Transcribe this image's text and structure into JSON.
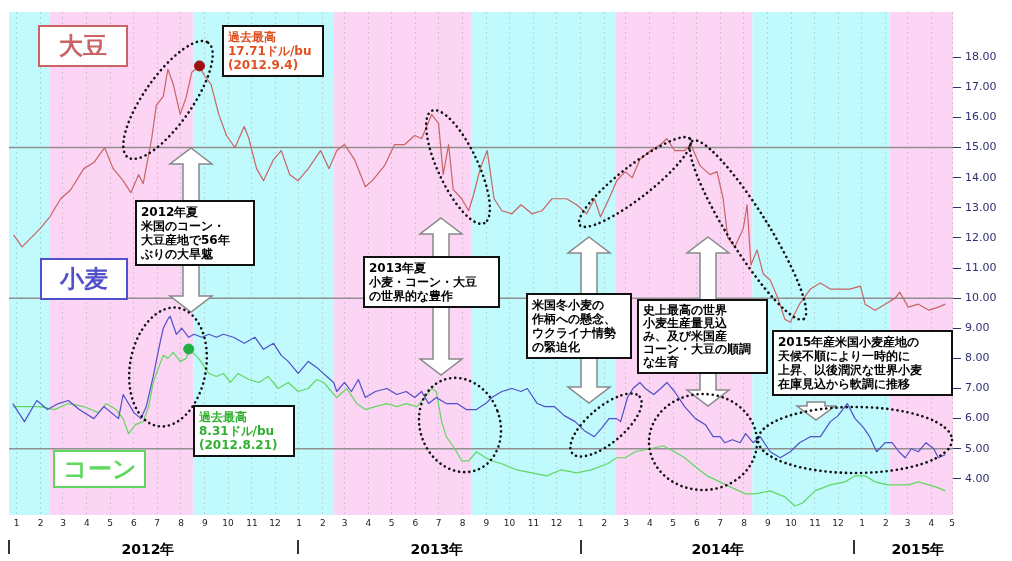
{
  "chart_data": {
    "type": "line",
    "grid": "x",
    "xlim": [
      "2012-01-01",
      "2015-05-09"
    ],
    "xticks": [
      {
        "value": "2012-01-11",
        "label": "1"
      },
      {
        "value": "2012-02-11",
        "label": "2"
      },
      {
        "value": "2012-03-11",
        "label": "3"
      },
      {
        "value": "2012-04-11",
        "label": "4"
      },
      {
        "value": "2012-05-11",
        "label": "5"
      },
      {
        "value": "2012-06-11",
        "label": "6"
      },
      {
        "value": "2012-07-11",
        "label": "7"
      },
      {
        "value": "2012-08-11",
        "label": "8"
      },
      {
        "value": "2012-09-11",
        "label": "9"
      },
      {
        "value": "2012-10-11",
        "label": "10"
      },
      {
        "value": "2012-11-11",
        "label": "11"
      },
      {
        "value": "2012-12-11",
        "label": "12"
      },
      {
        "value": "2013-01-11",
        "label": "1"
      },
      {
        "value": "2013-02-11",
        "label": "2"
      },
      {
        "value": "2013-03-11",
        "label": "3"
      },
      {
        "value": "2013-04-11",
        "label": "4"
      },
      {
        "value": "2013-05-11",
        "label": "5"
      },
      {
        "value": "2013-06-11",
        "label": "6"
      },
      {
        "value": "2013-07-11",
        "label": "7"
      },
      {
        "value": "2013-08-11",
        "label": "8"
      },
      {
        "value": "2013-09-11",
        "label": "9"
      },
      {
        "value": "2013-10-11",
        "label": "10"
      },
      {
        "value": "2013-11-11",
        "label": "11"
      },
      {
        "value": "2013-12-11",
        "label": "12"
      },
      {
        "value": "2014-01-11",
        "label": "1"
      },
      {
        "value": "2014-02-11",
        "label": "2"
      },
      {
        "value": "2014-03-11",
        "label": "3"
      },
      {
        "value": "2014-04-11",
        "label": "4"
      },
      {
        "value": "2014-05-11",
        "label": "5"
      },
      {
        "value": "2014-06-11",
        "label": "6"
      },
      {
        "value": "2014-07-11",
        "label": "7"
      },
      {
        "value": "2014-08-11",
        "label": "8"
      },
      {
        "value": "2014-09-11",
        "label": "9"
      },
      {
        "value": "2014-10-11",
        "label": "10"
      },
      {
        "value": "2014-11-11",
        "label": "11"
      },
      {
        "value": "2014-12-11",
        "label": "12"
      },
      {
        "value": "2015-01-11",
        "label": "1"
      },
      {
        "value": "2015-02-11",
        "label": "2"
      },
      {
        "value": "2015-03-11",
        "label": "3"
      },
      {
        "value": "2015-04-11",
        "label": "4"
      },
      {
        "value": "2015-05-08",
        "label": "5"
      }
    ],
    "ylim": [
      2.8,
      19.5
    ],
    "yticks": [
      {
        "value": 4,
        "label": "4.00"
      },
      {
        "value": 5,
        "label": "5.00"
      },
      {
        "value": 6,
        "label": "6.00"
      },
      {
        "value": 7,
        "label": "7.00"
      },
      {
        "value": 8,
        "label": "8.00"
      },
      {
        "value": 9,
        "label": "9.00"
      },
      {
        "value": 10,
        "label": "10.00"
      },
      {
        "value": 11,
        "label": "11.00"
      },
      {
        "value": 12,
        "label": "12.00"
      },
      {
        "value": 13,
        "label": "13.00"
      },
      {
        "value": 14,
        "label": "14.00"
      },
      {
        "value": 15,
        "label": "15.00"
      },
      {
        "value": 16,
        "label": "16.00"
      },
      {
        "value": 17,
        "label": "17.00"
      },
      {
        "value": 18,
        "label": "18.00"
      }
    ],
    "bands": [
      {
        "axis": "x",
        "from": "2012-01-01",
        "to": "2012-02-23",
        "color": "#c0fafc"
      },
      {
        "axis": "x",
        "from": "2012-02-23",
        "to": "2012-08-27",
        "color": "#fcd4f4"
      },
      {
        "axis": "x",
        "from": "2012-08-27",
        "to": "2013-02-25",
        "color": "#c0fafc"
      },
      {
        "axis": "x",
        "from": "2013-02-25",
        "to": "2013-08-23",
        "color": "#fcd4f4"
      },
      {
        "axis": "x",
        "from": "2013-08-23",
        "to": "2014-02-25",
        "color": "#c0fafc"
      },
      {
        "axis": "x",
        "from": "2014-02-25",
        "to": "2014-08-22",
        "color": "#fcd4f4"
      },
      {
        "axis": "x",
        "from": "2014-08-22",
        "to": "2015-02-16",
        "color": "#c0fafc"
      },
      {
        "axis": "x",
        "from": "2015-02-16",
        "to": "2015-05-09",
        "color": "#fcd4f4"
      }
    ],
    "ref_lines": [
      {
        "axis": "y",
        "value": 5,
        "color": "#909090"
      },
      {
        "axis": "y",
        "value": 10,
        "color": "#909090"
      },
      {
        "axis": "y",
        "value": 15,
        "color": "#909090"
      }
    ],
    "series": [
      {
        "name": "大豆",
        "color": "#c86464",
        "x": [
          "2012-01-07",
          "2012-01-18",
          "2012-02-10",
          "2012-02-23",
          "2012-03-08",
          "2012-03-21",
          "2012-04-07",
          "2012-04-20",
          "2012-05-04",
          "2012-05-15",
          "2012-05-28",
          "2012-06-07",
          "2012-06-17",
          "2012-06-23",
          "2012-07-04",
          "2012-07-10",
          "2012-07-19",
          "2012-07-25",
          "2012-08-01",
          "2012-08-10",
          "2012-08-18",
          "2012-08-25",
          "2012-09-04",
          "2012-09-10",
          "2012-09-19",
          "2012-09-29",
          "2012-10-09",
          "2012-10-20",
          "2012-11-01",
          "2012-11-07",
          "2012-11-17",
          "2012-11-26",
          "2012-12-09",
          "2012-12-19",
          "2012-12-30",
          "2013-01-10",
          "2013-01-23",
          "2013-02-08",
          "2013-02-19",
          "2013-03-01",
          "2013-03-11",
          "2013-03-24",
          "2013-04-07",
          "2013-04-16",
          "2013-05-02",
          "2013-05-15",
          "2013-05-28",
          "2013-06-10",
          "2013-06-19",
          "2013-07-02",
          "2013-07-11",
          "2013-07-17",
          "2013-07-24",
          "2013-07-30",
          "2013-08-10",
          "2013-08-19",
          "2013-08-25",
          "2013-09-03",
          "2013-09-12",
          "2013-09-16",
          "2013-09-21",
          "2013-10-01",
          "2013-10-14",
          "2013-10-26",
          "2013-11-09",
          "2013-11-22",
          "2013-12-05",
          "2013-12-24",
          "2014-01-06",
          "2014-01-19",
          "2014-01-29",
          "2014-02-06",
          "2014-02-17",
          "2014-02-27",
          "2014-03-10",
          "2014-03-19",
          "2014-03-29",
          "2014-04-12",
          "2014-04-25",
          "2014-05-03",
          "2014-05-13",
          "2014-05-26",
          "2014-06-03",
          "2014-06-15",
          "2014-06-28",
          "2014-07-07",
          "2014-07-15",
          "2014-07-21",
          "2014-07-30",
          "2014-08-10",
          "2014-08-15",
          "2014-08-20",
          "2014-08-28",
          "2014-09-05",
          "2014-09-14",
          "2014-09-24",
          "2014-10-03",
          "2014-10-10",
          "2014-10-22",
          "2014-11-05",
          "2014-11-18",
          "2014-12-01",
          "2014-12-13",
          "2014-12-26",
          "2015-01-09",
          "2015-01-15",
          "2015-01-28",
          "2015-02-10",
          "2015-02-23",
          "2015-03-01",
          "2015-03-12",
          "2015-03-25",
          "2015-04-08",
          "2015-04-20",
          "2015-04-29"
        ],
        "values": [
          12.1,
          11.7,
          12.3,
          12.7,
          13.3,
          13.6,
          14.3,
          14.5,
          15.0,
          14.3,
          13.9,
          13.5,
          14.1,
          13.8,
          15.3,
          16.4,
          16.7,
          17.6,
          17.1,
          16.1,
          16.7,
          17.5,
          17.71,
          17.4,
          17.1,
          16.1,
          15.4,
          15.0,
          15.7,
          15.3,
          14.3,
          13.9,
          14.6,
          14.9,
          14.1,
          13.9,
          14.3,
          14.9,
          14.3,
          14.9,
          15.1,
          14.6,
          13.7,
          13.9,
          14.4,
          15.1,
          15.1,
          15.4,
          15.3,
          16.1,
          15.8,
          14.1,
          15.1,
          13.6,
          13.3,
          12.9,
          13.4,
          14.3,
          14.9,
          14.2,
          13.3,
          12.9,
          12.8,
          13.1,
          12.8,
          12.9,
          13.3,
          13.3,
          13.1,
          12.8,
          13.3,
          12.7,
          13.3,
          13.9,
          14.2,
          14.0,
          14.6,
          14.9,
          15.1,
          15.3,
          14.9,
          14.9,
          15.1,
          14.4,
          14.1,
          14.2,
          13.3,
          12.0,
          11.7,
          12.3,
          13.1,
          11.1,
          11.6,
          10.8,
          10.6,
          10.0,
          9.3,
          9.2,
          9.8,
          10.3,
          10.5,
          10.3,
          10.3,
          10.3,
          10.4,
          9.8,
          9.6,
          9.8,
          10.0,
          10.2,
          9.7,
          9.8,
          9.6,
          9.7,
          9.8
        ]
      },
      {
        "name": "小麦",
        "color": "#5050c8",
        "x": [
          "2012-01-06",
          "2012-01-21",
          "2012-02-06",
          "2012-02-20",
          "2012-03-05",
          "2012-03-18",
          "2012-04-01",
          "2012-04-20",
          "2012-05-03",
          "2012-05-22",
          "2012-05-28",
          "2012-06-11",
          "2012-06-20",
          "2012-06-27",
          "2012-07-06",
          "2012-07-13",
          "2012-07-19",
          "2012-07-25",
          "2012-07-28",
          "2012-08-05",
          "2012-08-12",
          "2012-08-21",
          "2012-08-28",
          "2012-09-07",
          "2012-09-16",
          "2012-09-26",
          "2012-10-05",
          "2012-10-18",
          "2012-11-01",
          "2012-11-15",
          "2012-11-26",
          "2012-12-09",
          "2012-12-19",
          "2012-12-28",
          "2013-01-10",
          "2013-01-23",
          "2013-02-03",
          "2013-02-16",
          "2013-02-25",
          "2013-03-01",
          "2013-03-11",
          "2013-03-20",
          "2013-03-29",
          "2013-04-07",
          "2013-04-20",
          "2013-05-05",
          "2013-05-18",
          "2013-05-30",
          "2013-06-10",
          "2013-06-19",
          "2013-06-28",
          "2013-07-08",
          "2013-07-21",
          "2013-08-04",
          "2013-08-16",
          "2013-08-29",
          "2013-09-10",
          "2013-09-18",
          "2013-10-01",
          "2013-10-14",
          "2013-10-26",
          "2013-11-03",
          "2013-11-16",
          "2013-11-26",
          "2013-12-08",
          "2013-12-21",
          "2014-01-04",
          "2014-01-16",
          "2014-01-29",
          "2014-02-08",
          "2014-02-17",
          "2014-02-27",
          "2014-03-04",
          "2014-03-13",
          "2014-03-20",
          "2014-03-29",
          "2014-04-05",
          "2014-04-16",
          "2014-04-25",
          "2014-05-03",
          "2014-05-13",
          "2014-05-26",
          "2014-06-09",
          "2014-06-22",
          "2014-07-02",
          "2014-07-11",
          "2014-07-17",
          "2014-07-27",
          "2014-08-06",
          "2014-08-13",
          "2014-08-23",
          "2014-09-01",
          "2014-09-14",
          "2014-09-27",
          "2014-10-10",
          "2014-10-22",
          "2014-11-05",
          "2014-11-18",
          "2014-12-01",
          "2014-12-11",
          "2014-12-17",
          "2014-12-23",
          "2015-01-02",
          "2015-01-13",
          "2015-01-21",
          "2015-01-30",
          "2015-02-10",
          "2015-02-19",
          "2015-02-28",
          "2015-03-08",
          "2015-03-16",
          "2015-03-25",
          "2015-04-04",
          "2015-04-14",
          "2015-04-20",
          "2015-04-29"
        ],
        "values": [
          6.5,
          5.9,
          6.6,
          6.3,
          6.5,
          6.6,
          6.3,
          6.0,
          6.4,
          6.0,
          6.8,
          6.2,
          6.0,
          6.4,
          7.4,
          8.3,
          9.0,
          9.3,
          9.4,
          8.8,
          9.0,
          8.7,
          8.8,
          8.7,
          8.8,
          8.7,
          8.8,
          8.7,
          8.5,
          8.7,
          8.3,
          8.5,
          8.1,
          7.9,
          7.5,
          7.9,
          7.7,
          7.4,
          7.2,
          6.9,
          7.2,
          6.9,
          7.3,
          6.7,
          6.9,
          7.0,
          6.8,
          6.9,
          6.7,
          6.9,
          6.5,
          6.7,
          6.5,
          6.5,
          6.3,
          6.3,
          6.5,
          6.7,
          6.9,
          7.0,
          6.9,
          7.0,
          6.5,
          6.4,
          6.4,
          6.1,
          5.9,
          5.6,
          5.4,
          5.7,
          6.0,
          6.0,
          5.9,
          6.7,
          7.0,
          7.2,
          7.0,
          6.8,
          7.0,
          7.2,
          6.9,
          6.4,
          6.0,
          5.8,
          5.4,
          5.4,
          5.2,
          5.3,
          5.2,
          5.5,
          5.2,
          5.4,
          4.9,
          4.7,
          4.9,
          5.2,
          5.4,
          5.4,
          5.9,
          6.1,
          6.3,
          6.5,
          6.0,
          5.7,
          5.4,
          4.9,
          5.2,
          5.2,
          4.9,
          4.7,
          5.0,
          4.9,
          5.2,
          5.0,
          4.7,
          4.8
        ]
      },
      {
        "name": "コーン",
        "color": "#60d860",
        "x": [
          "2012-01-06",
          "2012-01-21",
          "2012-02-10",
          "2012-02-29",
          "2012-03-18",
          "2012-04-07",
          "2012-04-26",
          "2012-05-06",
          "2012-05-19",
          "2012-05-28",
          "2012-06-04",
          "2012-06-13",
          "2012-06-23",
          "2012-06-30",
          "2012-07-06",
          "2012-07-13",
          "2012-07-19",
          "2012-07-25",
          "2012-08-01",
          "2012-08-10",
          "2012-08-18",
          "2012-08-21",
          "2012-09-03",
          "2012-09-16",
          "2012-09-26",
          "2012-10-05",
          "2012-10-14",
          "2012-10-24",
          "2012-11-07",
          "2012-11-20",
          "2012-12-02",
          "2012-12-15",
          "2012-12-28",
          "2013-01-10",
          "2013-01-23",
          "2013-02-03",
          "2013-02-12",
          "2013-02-22",
          "2013-03-01",
          "2013-03-14",
          "2013-03-27",
          "2013-04-07",
          "2013-04-20",
          "2013-05-05",
          "2013-05-18",
          "2013-05-30",
          "2013-06-13",
          "2013-06-23",
          "2013-07-02",
          "2013-07-08",
          "2013-07-15",
          "2013-07-21",
          "2013-08-01",
          "2013-08-10",
          "2013-08-19",
          "2013-08-29",
          "2013-09-10",
          "2013-09-18",
          "2013-10-01",
          "2013-10-20",
          "2013-11-09",
          "2013-11-28",
          "2013-12-17",
          "2014-01-06",
          "2014-01-25",
          "2014-02-15",
          "2014-02-27",
          "2014-03-10",
          "2014-03-23",
          "2014-04-12",
          "2014-04-28",
          "2014-05-13",
          "2014-05-26",
          "2014-06-09",
          "2014-06-24",
          "2014-07-11",
          "2014-07-27",
          "2014-08-13",
          "2014-08-25",
          "2014-09-14",
          "2014-10-03",
          "2014-10-16",
          "2014-10-26",
          "2014-11-11",
          "2014-12-01",
          "2014-12-20",
          "2015-01-02",
          "2015-01-15",
          "2015-01-28",
          "2015-02-13",
          "2015-02-28",
          "2015-03-12",
          "2015-03-25",
          "2015-04-08",
          "2015-04-20",
          "2015-04-29"
        ],
        "values": [
          6.4,
          6.4,
          6.4,
          6.3,
          6.5,
          6.4,
          6.2,
          6.5,
          6.3,
          6.0,
          5.5,
          5.8,
          5.9,
          6.4,
          7.2,
          7.7,
          8.1,
          8.0,
          8.2,
          7.9,
          8.0,
          8.31,
          8.0,
          7.5,
          7.4,
          7.5,
          7.2,
          7.5,
          7.3,
          7.2,
          7.4,
          7.0,
          7.2,
          6.9,
          7.0,
          7.3,
          7.2,
          6.9,
          6.7,
          7.0,
          6.5,
          6.3,
          6.4,
          6.5,
          6.4,
          6.5,
          6.4,
          6.7,
          7.0,
          6.9,
          5.9,
          5.4,
          5.0,
          4.6,
          4.6,
          4.9,
          4.7,
          4.6,
          4.5,
          4.3,
          4.2,
          4.1,
          4.3,
          4.2,
          4.3,
          4.5,
          4.7,
          4.7,
          4.9,
          5.0,
          5.1,
          4.9,
          4.7,
          4.4,
          4.1,
          3.9,
          3.7,
          3.5,
          3.5,
          3.6,
          3.4,
          3.1,
          3.2,
          3.6,
          3.8,
          3.9,
          4.1,
          4.1,
          3.9,
          3.8,
          3.8,
          3.8,
          3.9,
          3.8,
          3.7,
          3.6
        ]
      },
      {
        "type": "scatter",
        "marker": "circle",
        "color": "#a01010",
        "x": [
          "2012-09-04"
        ],
        "values": [
          17.71
        ]
      },
      {
        "type": "scatter",
        "marker": "circle",
        "color": "#20b040",
        "x": [
          "2012-08-21"
        ],
        "values": [
          8.31
        ]
      }
    ],
    "annotations": [
      "過去最高\n17.71ドル/bu\n(2012.9.4)",
      "過去最高\n8.31ドル/bu\n(2012.8.21)",
      "2012年夏米国のコーン・大豆産地で56年ぶりの大旱魃",
      "2013年夏小麦・コーン・大豆の世界的な豊作",
      "米国冬小麦の作柄への懸念、ウクライナ情勢の緊迫化",
      "史上最高の世界小麦生産量見込み、及び米国産コーン・大豆の順調な生育",
      "2015年産米国小麦産地の天候不順により一時的に上昇、以後潤沢な世界小麦在庫見込から軟調に推移",
      "2012年",
      "2013年",
      "2014年",
      "2015年"
    ]
  }
}
